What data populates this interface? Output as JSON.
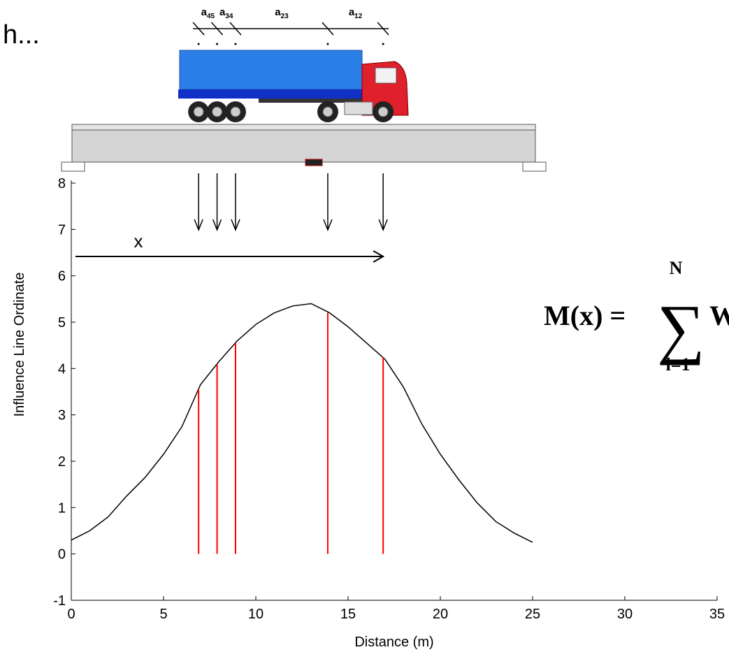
{
  "chart_data": {
    "type": "line",
    "xlabel": "Distance (m)",
    "ylabel": "Influence Line Ordinate",
    "xlim": [
      0,
      35
    ],
    "ylim": [
      -1,
      8
    ],
    "xticks": [
      0,
      5,
      10,
      15,
      20,
      25,
      30,
      35
    ],
    "yticks": [
      -1,
      0,
      1,
      2,
      3,
      4,
      5,
      6,
      7,
      8
    ],
    "series": [
      {
        "color": "#000000",
        "x": [
          0,
          1,
          2,
          3,
          4,
          5,
          6,
          7,
          8,
          9,
          10,
          11,
          12,
          13,
          14,
          15,
          16,
          17,
          18,
          19,
          20,
          21,
          22,
          23,
          24,
          25
        ],
        "values": [
          0.3,
          0.5,
          0.8,
          1.25,
          1.65,
          2.15,
          2.75,
          3.65,
          4.15,
          4.6,
          4.95,
          5.2,
          5.35,
          5.4,
          5.2,
          4.9,
          4.55,
          4.2,
          3.6,
          2.8,
          2.15,
          1.6,
          1.1,
          0.7,
          0.45,
          0.25
        ]
      },
      {
        "type": "stem",
        "color": "#ff0000",
        "x": [
          6.9,
          7.9,
          8.9,
          13.9,
          16.9
        ],
        "values": [
          3.55,
          4.1,
          4.55,
          5.2,
          4.25
        ]
      }
    ],
    "annotations": {
      "corner_text": "h...",
      "x_marker": "x",
      "spacings": [
        {
          "letter": "a",
          "sub": "45"
        },
        {
          "letter": "a",
          "sub": "34"
        },
        {
          "letter": "a",
          "sub": "23"
        },
        {
          "letter": "a",
          "sub": "12"
        }
      ],
      "formula": {
        "lhs": "M(x) =",
        "sum": "∑",
        "upper": "N",
        "lower": "i=1",
        "term": "W"
      }
    }
  }
}
